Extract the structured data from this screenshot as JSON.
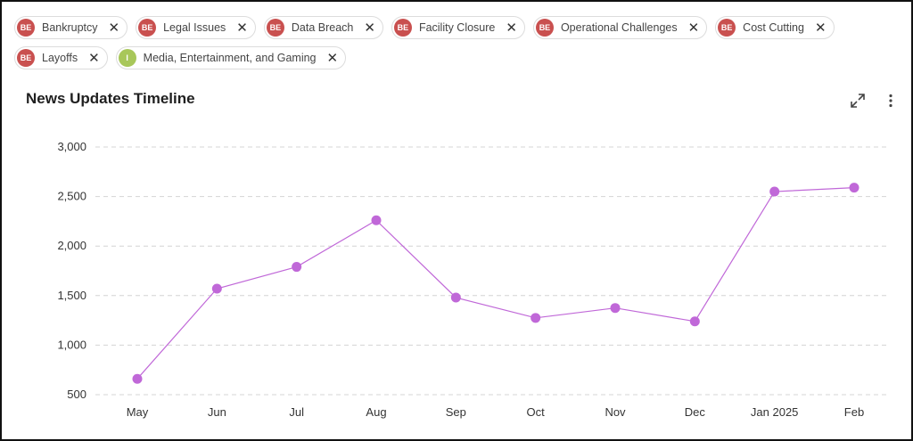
{
  "filters": [
    {
      "badge": "BE",
      "label": "Bankruptcy",
      "color": "#c9504f"
    },
    {
      "badge": "BE",
      "label": "Legal Issues",
      "color": "#c9504f"
    },
    {
      "badge": "BE",
      "label": "Data Breach",
      "color": "#c9504f"
    },
    {
      "badge": "BE",
      "label": "Facility Closure",
      "color": "#c9504f"
    },
    {
      "badge": "BE",
      "label": "Operational Challenges",
      "color": "#c9504f"
    },
    {
      "badge": "BE",
      "label": "Cost Cutting",
      "color": "#c9504f"
    },
    {
      "badge": "BE",
      "label": "Layoffs",
      "color": "#c9504f"
    },
    {
      "badge": "I",
      "label": "Media, Entertainment, and Gaming",
      "color": "#a8c75a"
    }
  ],
  "close_glyph": "✕",
  "chart_data": {
    "type": "line",
    "title": "News Updates Timeline",
    "categories": [
      "May",
      "Jun",
      "Jul",
      "Aug",
      "Sep",
      "Oct",
      "Nov",
      "Dec",
      "Jan 2025",
      "Feb"
    ],
    "series": [
      {
        "values": [
          660,
          1570,
          1790,
          2260,
          1480,
          1275,
          1375,
          1240,
          2550,
          2590
        ],
        "color": "#c068d8"
      }
    ],
    "ylim": [
      500,
      3000
    ],
    "yticks": [
      500,
      1000,
      1500,
      2000,
      2500,
      3000
    ],
    "ytick_labels": [
      "500",
      "1,000",
      "1,500",
      "2,000",
      "2,500",
      "3,000"
    ],
    "xlabel": "",
    "ylabel": "",
    "grid": true,
    "grid_style": "dashed"
  },
  "icons": {
    "expand": "expand-icon",
    "more": "more-vertical-icon"
  }
}
